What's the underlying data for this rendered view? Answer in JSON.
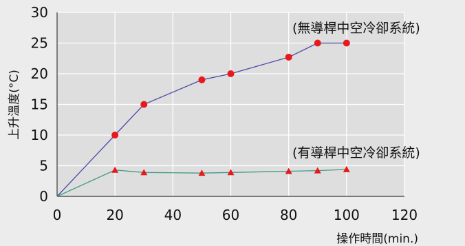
{
  "chart_data": {
    "type": "line",
    "xlabel": "操作時間(min.)",
    "ylabel": "上升溫度(°C)",
    "xlim": [
      0,
      120
    ],
    "ylim": [
      0,
      30
    ],
    "x_ticks": [
      "0",
      "20",
      "40",
      "60",
      "80",
      "100",
      "120"
    ],
    "y_ticks": [
      "0",
      "5",
      "10",
      "15",
      "20",
      "25",
      "30"
    ],
    "grid": true,
    "series": [
      {
        "name": "(無導桿中空冷卻系統)",
        "color": "#4b4aa8",
        "marker": "circle",
        "marker_color": "#e8191b",
        "x": [
          0,
          20,
          30,
          50,
          60,
          80,
          90,
          100
        ],
        "y": [
          0,
          10,
          15,
          19,
          20,
          22.7,
          25,
          25
        ]
      },
      {
        "name": "(有導桿中空冷卻系統)",
        "color": "#3f9a86",
        "marker": "triangle",
        "marker_color": "#e8191b",
        "x": [
          0,
          20,
          30,
          50,
          60,
          80,
          90,
          100
        ],
        "y": [
          0,
          4.3,
          3.9,
          3.8,
          3.9,
          4.1,
          4.2,
          4.4
        ]
      }
    ]
  }
}
